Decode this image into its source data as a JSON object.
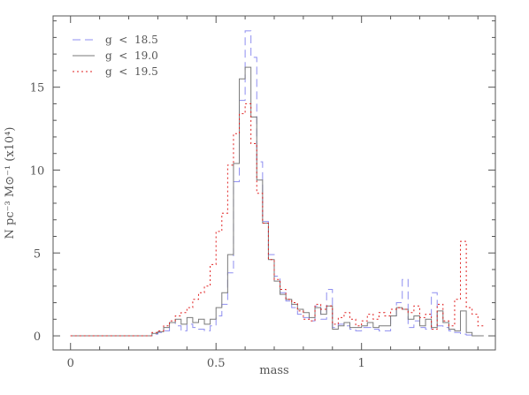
{
  "chart_data": {
    "type": "line",
    "step": true,
    "xlabel": "mass",
    "ylabel": "N pc⁻³ M⊙⁻¹ (x10⁴)",
    "xlim": [
      -0.06,
      1.46
    ],
    "ylim": [
      -0.85,
      19.3
    ],
    "xticks": [
      0,
      0.5,
      1
    ],
    "xtick_labels": [
      "0",
      "0.5",
      "1"
    ],
    "yticks": [
      0,
      5,
      10,
      15
    ],
    "ytick_labels": [
      "0",
      "5",
      "10",
      "15"
    ],
    "legend_position": "top-left",
    "bin_width": 0.02,
    "bin_start": 0.0,
    "series": [
      {
        "name": "g  <  18.5",
        "color": "#8f8ff0",
        "dash": "9,5",
        "values": [
          0,
          0,
          0,
          0,
          0,
          0,
          0,
          0,
          0,
          0,
          0,
          0,
          0,
          0,
          0.1,
          0.2,
          0.3,
          0.8,
          0.6,
          0.3,
          0.7,
          0.5,
          0.4,
          0.3,
          0.6,
          1.2,
          1.9,
          3.8,
          9.3,
          14.2,
          18.4,
          16.8,
          10.5,
          6.9,
          4.9,
          3.6,
          2.6,
          2.1,
          1.7,
          1.3,
          1.1,
          0.9,
          1.8,
          1.0,
          2.8,
          0.5,
          0.7,
          0.6,
          0.4,
          0.3,
          0.5,
          0.5,
          0.4,
          0.3,
          0.3,
          1.2,
          2.0,
          3.4,
          0.5,
          0.9,
          0.5,
          0.4,
          2.6,
          0.6,
          0.5,
          0.3,
          0.2,
          0.1,
          0.05,
          0,
          0
        ]
      },
      {
        "name": "g  <  19.0",
        "color": "#7a7a7a",
        "dash": "",
        "values": [
          0,
          0,
          0,
          0,
          0,
          0,
          0,
          0,
          0,
          0,
          0,
          0,
          0,
          0,
          0.15,
          0.25,
          0.5,
          0.8,
          1.0,
          0.7,
          1.1,
          0.8,
          1.0,
          0.7,
          1.0,
          1.7,
          2.6,
          4.9,
          10.4,
          15.5,
          16.2,
          13.2,
          9.4,
          6.8,
          4.6,
          3.3,
          2.5,
          2.2,
          1.9,
          1.6,
          1.4,
          1.1,
          1.7,
          1.3,
          1.8,
          0.4,
          0.6,
          0.8,
          0.5,
          0.5,
          0.6,
          0.8,
          0.5,
          0.6,
          0.6,
          1.2,
          1.7,
          1.6,
          1.0,
          1.2,
          0.6,
          1.0,
          0.5,
          1.5,
          0.8,
          0.4,
          0.3,
          1.5,
          0.2,
          0,
          0
        ]
      },
      {
        "name": "g  <  19.5",
        "color": "#e02020",
        "dash": "2,3",
        "values": [
          0,
          0,
          0,
          0,
          0,
          0,
          0,
          0,
          0,
          0,
          0,
          0,
          0,
          0,
          0.2,
          0.3,
          0.6,
          0.9,
          1.2,
          1.4,
          1.7,
          2.2,
          2.6,
          3.0,
          4.3,
          6.3,
          7.4,
          10.3,
          12.2,
          13.4,
          14.0,
          11.6,
          8.6,
          6.8,
          4.6,
          3.4,
          2.8,
          2.2,
          2.0,
          1.5,
          1.0,
          0.9,
          1.9,
          1.6,
          1.8,
          0.7,
          1.1,
          1.4,
          1.0,
          0.6,
          0.9,
          1.3,
          1.0,
          1.4,
          1.2,
          1.6,
          1.7,
          1.6,
          1.4,
          1.8,
          1.1,
          1.3,
          0.4,
          1.9,
          0.9,
          0.6,
          2.2,
          5.7,
          1.7,
          1.3,
          0.6
        ]
      }
    ]
  }
}
